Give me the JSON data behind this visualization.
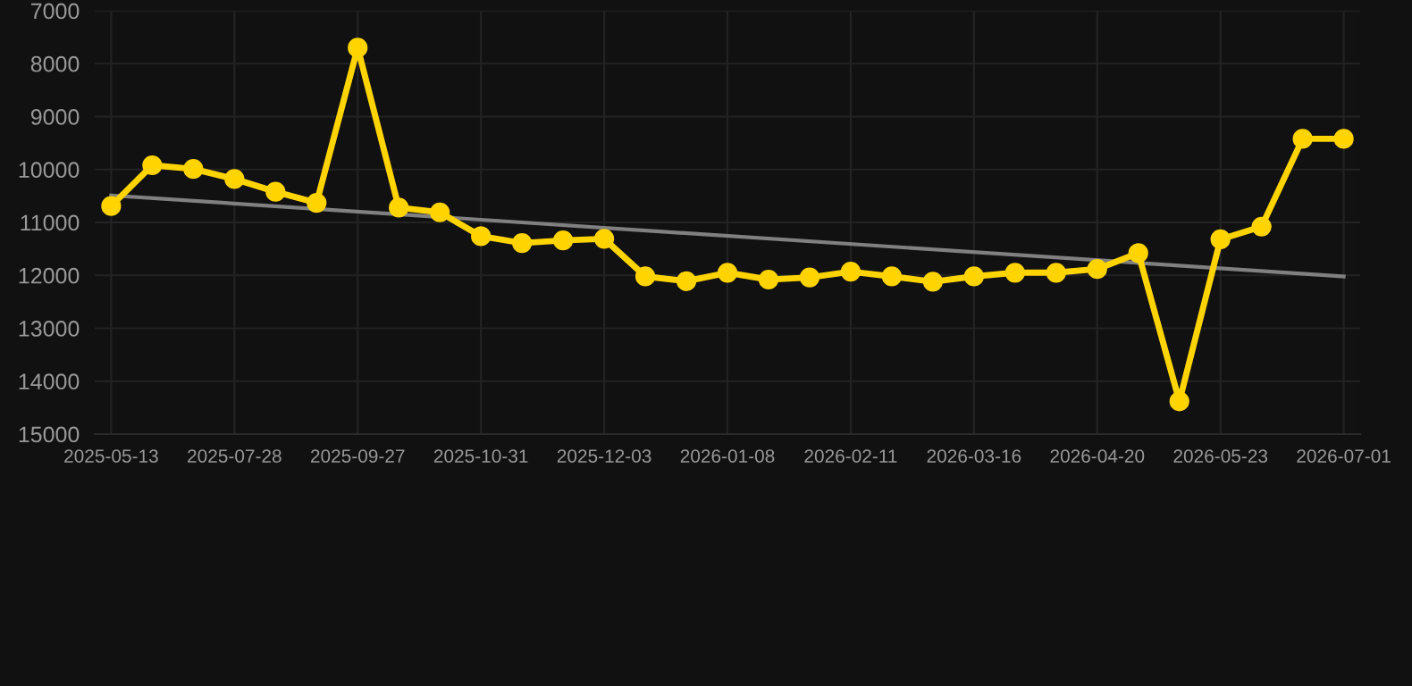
{
  "chart_data": {
    "type": "line",
    "categories": [
      "2025-05-13",
      null,
      null,
      "2025-07-28",
      null,
      null,
      "2025-09-27",
      null,
      null,
      "2025-10-31",
      null,
      null,
      "2025-12-03",
      null,
      null,
      "2026-01-08",
      null,
      null,
      "2026-02-11",
      null,
      null,
      "2026-03-16",
      null,
      null,
      "2026-04-20",
      null,
      null,
      "2026-05-23",
      null,
      null,
      "2026-07-01"
    ],
    "series": [
      {
        "color": "#ffd400",
        "marker": "circle",
        "values": [
          10690,
          9920,
          9990,
          10180,
          10420,
          10630,
          7700,
          10720,
          10810,
          11260,
          11390,
          11340,
          11310,
          12020,
          12110,
          11950,
          12080,
          12040,
          11930,
          12020,
          12120,
          12020,
          11950,
          11950,
          11880,
          11580,
          14380,
          11320,
          11080,
          9420,
          9420
        ]
      },
      {
        "type": "line",
        "color": "#808080",
        "marker": "none",
        "values": [
          10490,
          null,
          null,
          null,
          null,
          null,
          null,
          null,
          null,
          null,
          null,
          null,
          null,
          null,
          null,
          null,
          null,
          null,
          null,
          null,
          null,
          null,
          null,
          null,
          null,
          null,
          null,
          null,
          null,
          null,
          12020
        ]
      }
    ],
    "ylim": [
      15000,
      7000
    ],
    "yticks": [
      7000,
      8000,
      9000,
      10000,
      11000,
      12000,
      13000,
      14000,
      15000
    ],
    "grid": true,
    "legend": false
  }
}
